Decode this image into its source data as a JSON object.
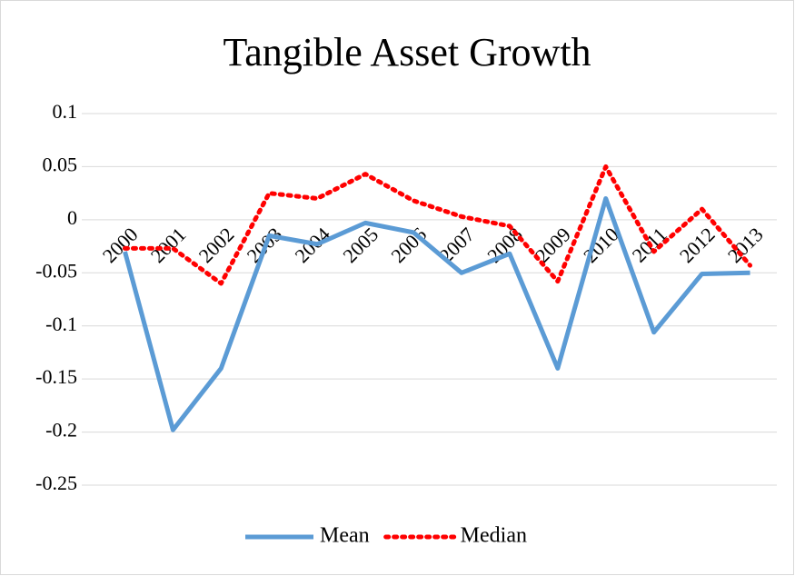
{
  "chart_data": {
    "type": "line",
    "title": "Tangible Asset Growth",
    "categories": [
      "2000",
      "2001",
      "2002",
      "2003",
      "2004",
      "2005",
      "2006",
      "2007",
      "2008",
      "2009",
      "2010",
      "2011",
      "2012",
      "2013"
    ],
    "series": [
      {
        "name": "Mean",
        "color": "#5b9bd5",
        "dash": "solid",
        "values": [
          -0.03,
          -0.198,
          -0.14,
          -0.015,
          -0.023,
          -0.003,
          -0.012,
          -0.05,
          -0.032,
          -0.14,
          0.02,
          -0.106,
          -0.051,
          -0.05
        ]
      },
      {
        "name": "Median",
        "color": "#ff0000",
        "dash": "dotted",
        "values": [
          -0.027,
          -0.027,
          -0.06,
          0.025,
          0.02,
          0.043,
          0.018,
          0.003,
          -0.006,
          -0.058,
          0.05,
          -0.03,
          0.01,
          -0.043
        ]
      }
    ],
    "ylim": [
      -0.25,
      0.1
    ],
    "yticks": [
      0.1,
      0.05,
      0,
      -0.05,
      -0.1,
      -0.15,
      -0.2,
      -0.25
    ],
    "grid": true,
    "legend": "bottom"
  }
}
